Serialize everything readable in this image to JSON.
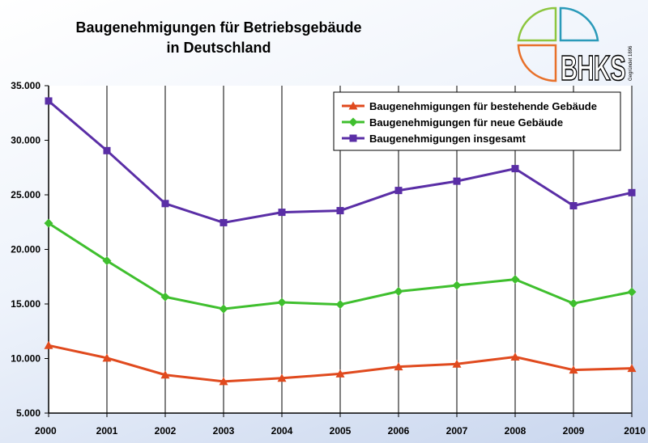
{
  "title_lines": [
    "Baugenehmigungen für Betriebsgebäude",
    "in Deutschland"
  ],
  "logo": {
    "text": "BHKS",
    "subtext": "Gegründet 1896",
    "colors": {
      "green": "#8dc63f",
      "blue": "#2a9ab9",
      "orange": "#e8702a"
    }
  },
  "chart_data": {
    "type": "line",
    "title": "Baugenehmigungen für Betriebsgebäude in Deutschland",
    "xlabel": "",
    "ylabel": "",
    "categories": [
      "2000",
      "2001",
      "2002",
      "2003",
      "2004",
      "2005",
      "2006",
      "2007",
      "2008",
      "2009",
      "2010"
    ],
    "ylim": [
      5000,
      35000
    ],
    "yticks": [
      5000,
      10000,
      15000,
      20000,
      25000,
      30000,
      35000
    ],
    "ytick_labels": [
      "5.000",
      "10.000",
      "15.000",
      "20.000",
      "25.000",
      "30.000",
      "35.000"
    ],
    "grid": {
      "vertical": true,
      "horizontal": false
    },
    "legend_position": "top-right",
    "series": [
      {
        "name": "Baugenehmigungen für bestehende Gebäude",
        "color": "#e04a1e",
        "marker": "triangle",
        "values": [
          11200,
          10050,
          8500,
          7900,
          8200,
          8600,
          9250,
          9500,
          10150,
          8950,
          9100
        ]
      },
      {
        "name": "Baugenehmigungen für neue Gebäude",
        "color": "#3fbf2e",
        "marker": "diamond",
        "values": [
          22400,
          18950,
          15650,
          14550,
          15150,
          14950,
          16150,
          16700,
          17250,
          15050,
          16100
        ]
      },
      {
        "name": "Baugenehmigungen insgesamt",
        "color": "#5a2ea6",
        "marker": "square",
        "values": [
          33600,
          29050,
          24200,
          22450,
          23400,
          23550,
          25400,
          26250,
          27400,
          24000,
          25200
        ]
      }
    ]
  }
}
